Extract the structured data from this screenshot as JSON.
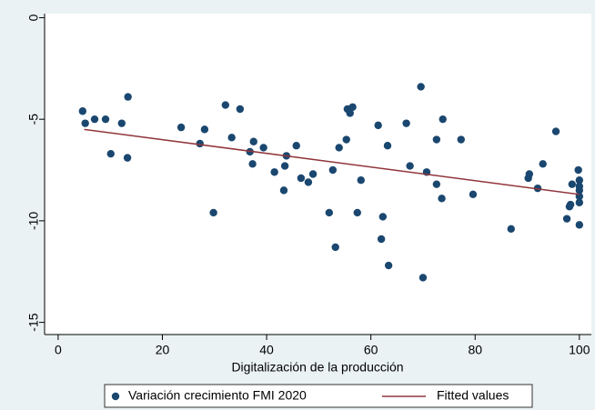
{
  "chart_data": {
    "type": "scatter",
    "x_label": "Digitalización de la producción",
    "xlim": [
      -2.6,
      102.3
    ],
    "xticks": [
      0,
      20,
      40,
      60,
      80,
      100
    ],
    "ylim": [
      -15.6,
      0.2
    ],
    "yticks": [
      -15,
      -10,
      -5,
      0
    ],
    "grid": false,
    "legend": "bottom",
    "series": [
      {
        "name": "Variación crecimiento FMI 2020",
        "color": "#1a476f",
        "kind": "scatter",
        "x": [
          4.7,
          5.2,
          7.0,
          9.1,
          10.1,
          12.2,
          13.4,
          13.3,
          23.6,
          27.2,
          28.1,
          29.8,
          32.1,
          33.3,
          34.9,
          36.8,
          37.3,
          37.5,
          39.4,
          41.5,
          43.3,
          43.5,
          43.8,
          45.7,
          46.6,
          48.0,
          48.9,
          52.0,
          52.7,
          53.2,
          53.9,
          55.3,
          55.5,
          56.0,
          56.5,
          57.4,
          58.1,
          61.4,
          62.0,
          62.3,
          63.2,
          63.4,
          66.8,
          67.5,
          69.6,
          70.0,
          70.7,
          72.6,
          72.6,
          73.6,
          73.8,
          77.3,
          79.6,
          86.9,
          90.2,
          90.4,
          92.0,
          93.0,
          95.5,
          97.6,
          98.1,
          98.3,
          98.6,
          99.8,
          100,
          100,
          100,
          100,
          100,
          100
        ],
        "values": [
          -4.6,
          -5.2,
          -5.0,
          -5.0,
          -6.7,
          -5.2,
          -3.9,
          -6.9,
          -5.4,
          -6.2,
          -5.5,
          -9.6,
          -4.3,
          -5.9,
          -4.5,
          -6.6,
          -7.2,
          -6.1,
          -6.4,
          -7.6,
          -8.5,
          -7.3,
          -6.8,
          -6.3,
          -7.9,
          -8.1,
          -7.7,
          -9.6,
          -7.5,
          -11.3,
          -6.4,
          -6.0,
          -4.5,
          -4.7,
          -4.4,
          -9.6,
          -8.0,
          -5.3,
          -10.9,
          -9.8,
          -6.3,
          -12.2,
          -5.2,
          -7.3,
          -3.4,
          -12.8,
          -7.6,
          -8.2,
          -6.0,
          -8.9,
          -5.0,
          -6.0,
          -8.7,
          -10.4,
          -7.9,
          -7.7,
          -8.4,
          -7.2,
          -5.6,
          -9.9,
          -9.3,
          -9.2,
          -8.2,
          -7.5,
          -8.0,
          -8.3,
          -8.5,
          -8.8,
          -9.1,
          -10.2
        ]
      },
      {
        "name": "Fitted values",
        "color": "#90353b",
        "kind": "line",
        "x": [
          5,
          100
        ],
        "values": [
          -5.5,
          -8.7
        ]
      }
    ]
  }
}
